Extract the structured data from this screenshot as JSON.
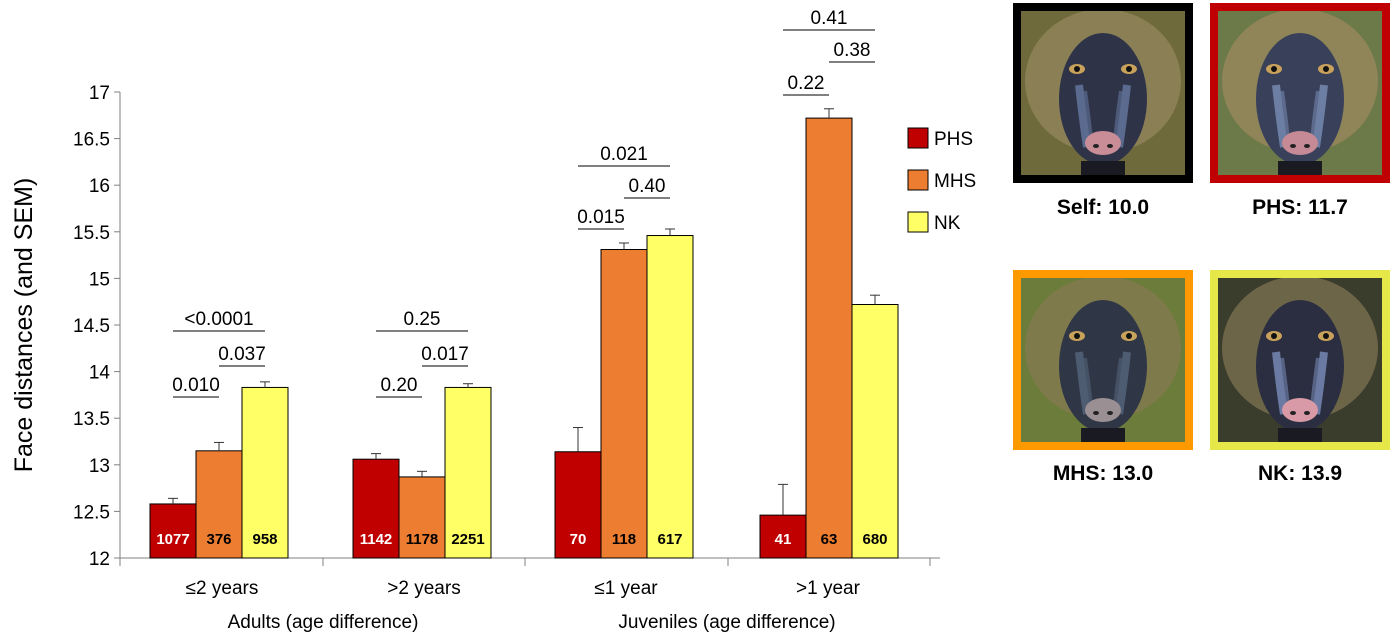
{
  "chart_data": {
    "type": "bar",
    "ylabel": "Face distances (and SEM)",
    "ylim": [
      12,
      17
    ],
    "yticks": [
      "12",
      "12.5",
      "13",
      "13.5",
      "14",
      "14.5",
      "15",
      "15.5",
      "16",
      "16.5",
      "17"
    ],
    "groups": [
      {
        "label": "Adults (age difference)",
        "categories": [
          0,
          1
        ]
      },
      {
        "label": "Juveniles (age difference)",
        "categories": [
          2,
          3
        ]
      }
    ],
    "categories": [
      "≤2 years",
      ">2 years",
      "≤1 year",
      ">1 year"
    ],
    "series": [
      {
        "name": "PHS",
        "color": "#c00000",
        "values": [
          12.58,
          13.06,
          13.14,
          12.46
        ],
        "sem": [
          0.06,
          0.06,
          0.26,
          0.33
        ],
        "n": [
          "1077",
          "1142",
          "70",
          "41"
        ],
        "n_color": "#ffffff"
      },
      {
        "name": "MHS",
        "color": "#ed7d31",
        "values": [
          13.15,
          12.87,
          15.31,
          16.72
        ],
        "sem": [
          0.09,
          0.06,
          0.07,
          0.1
        ],
        "n": [
          "376",
          "1178",
          "118",
          "63"
        ],
        "n_color": "#000000"
      },
      {
        "name": "NK",
        "color": "#ffff66",
        "values": [
          13.83,
          13.83,
          15.46,
          14.72
        ],
        "sem": [
          0.06,
          0.04,
          0.07,
          0.1
        ],
        "n": [
          "958",
          "2251",
          "617",
          "680"
        ],
        "n_color": "#000000"
      }
    ],
    "comparisons": [
      {
        "category": 0,
        "pair": [
          "PHS",
          "MHS"
        ],
        "label": "0.010"
      },
      {
        "category": 0,
        "pair": [
          "MHS",
          "NK"
        ],
        "label": "0.037"
      },
      {
        "category": 0,
        "pair": [
          "PHS",
          "NK"
        ],
        "label": "<0.0001"
      },
      {
        "category": 1,
        "pair": [
          "PHS",
          "MHS"
        ],
        "label": "0.20"
      },
      {
        "category": 1,
        "pair": [
          "MHS",
          "NK"
        ],
        "label": "0.017"
      },
      {
        "category": 1,
        "pair": [
          "PHS",
          "NK"
        ],
        "label": "0.25"
      },
      {
        "category": 2,
        "pair": [
          "PHS",
          "MHS"
        ],
        "label": "0.015"
      },
      {
        "category": 2,
        "pair": [
          "MHS",
          "NK"
        ],
        "label": "0.40"
      },
      {
        "category": 2,
        "pair": [
          "PHS",
          "NK"
        ],
        "label": "0.021"
      },
      {
        "category": 3,
        "pair": [
          "PHS",
          "MHS"
        ],
        "label": "0.22"
      },
      {
        "category": 3,
        "pair": [
          "MHS",
          "NK"
        ],
        "label": "0.38"
      },
      {
        "category": 3,
        "pair": [
          "PHS",
          "NK"
        ],
        "label": "0.41"
      }
    ],
    "legend": {
      "position": "right",
      "entries": [
        "PHS",
        "MHS",
        "NK"
      ]
    },
    "grid": false
  },
  "photos": [
    {
      "caption": "Self: 10.0",
      "frame_color": "#000000"
    },
    {
      "caption": "PHS: 11.7",
      "frame_color": "#c00000"
    },
    {
      "caption": "MHS: 13.0",
      "frame_color": "#ff9900"
    },
    {
      "caption": "NK: 13.9",
      "frame_color": "#e6e84a"
    }
  ]
}
